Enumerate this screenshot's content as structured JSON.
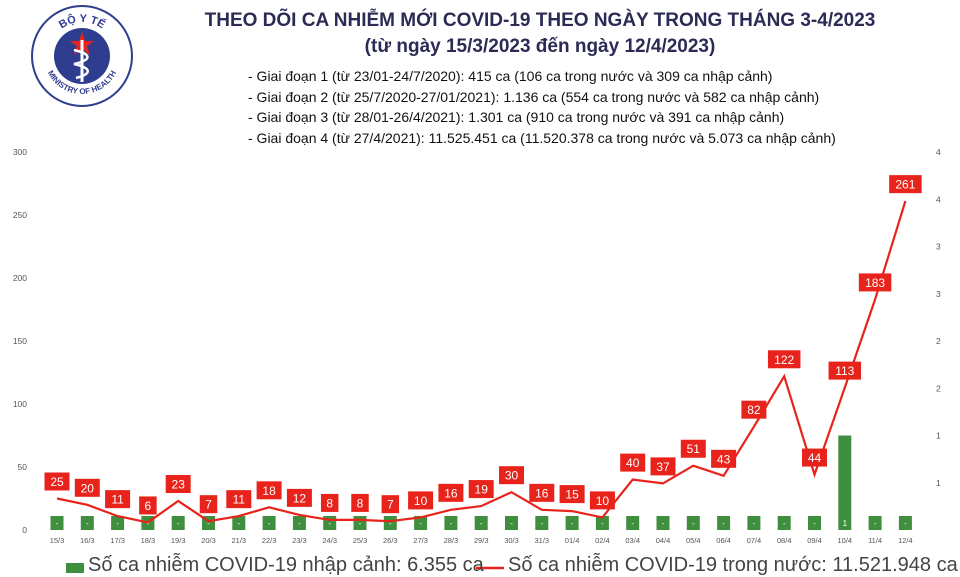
{
  "logo": {
    "text_top": "BỘ Y TẾ",
    "text_bottom": "MINISTRY OF HEALTH"
  },
  "title": "THEO DÕI CA NHIỄM MỚI COVID-19 THEO NGÀY TRONG THÁNG 3-4/2023",
  "subtitle": "(từ ngày 15/3/2023 đến ngày 12/4/2023)",
  "notes": [
    "- Giai đoạn 1 (từ 23/01-24/7/2020): 415 ca (106 ca trong nước và 309 ca nhập cảnh)",
    "- Giai đoạn 2 (từ 25/7/2020-27/01/2021): 1.136 ca (554 ca trong nước và 582 ca nhập cảnh)",
    "- Giai đoạn 3 (từ 28/01-26/4/2021): 1.301 ca (910 ca trong nước và 391 ca nhập cảnh)",
    "- Giai đoạn 4 (từ 27/4/2021): 11.525.451 ca (11.520.378 ca trong nước và 5.073 ca nhập cảnh)"
  ],
  "colors": {
    "bar": "#3f8f3f",
    "line": "#e8231b",
    "label_bg": "#e8231b",
    "title": "#2b2b55",
    "logo": "#2f3d8f"
  },
  "chart_data": {
    "type": "bar",
    "categories": [
      "15/3",
      "16/3",
      "17/3",
      "18/3",
      "19/3",
      "20/3",
      "21/3",
      "22/3",
      "23/3",
      "24/3",
      "25/3",
      "26/3",
      "27/3",
      "28/3",
      "29/3",
      "30/3",
      "31/3",
      "01/4",
      "02/4",
      "03/4",
      "04/4",
      "05/4",
      "06/4",
      "07/4",
      "08/4",
      "09/4",
      "10/4",
      "11/4",
      "12/4"
    ],
    "y_left": {
      "ticks": [
        0,
        50,
        100,
        150,
        200,
        250,
        300
      ],
      "range": [
        0,
        300
      ]
    },
    "y_right": {
      "ticks": [
        "",
        "1",
        "1",
        "2",
        "2",
        "3",
        "3",
        "4",
        "4"
      ],
      "range": [
        0,
        4
      ]
    },
    "series": [
      {
        "name": "Số ca nhiễm COVID-19 nhập cảnh: 6.355 ca",
        "type": "bar",
        "axis": "right",
        "values": [
          0,
          0,
          0,
          0,
          0,
          0,
          0,
          0,
          0,
          0,
          0,
          0,
          0,
          0,
          0,
          0,
          0,
          0,
          0,
          0,
          0,
          0,
          0,
          0,
          0,
          0,
          1,
          0,
          0
        ],
        "labels": [
          "-",
          "-",
          "-",
          "-",
          "-",
          "-",
          "-",
          "-",
          "-",
          "-",
          "-",
          "-",
          "-",
          "-",
          "-",
          "-",
          "-",
          "-",
          "-",
          "-",
          "-",
          "-",
          "-",
          "-",
          "-",
          "-",
          "1",
          "-",
          "-"
        ]
      },
      {
        "name": "Số ca nhiễm COVID-19 trong nước: 11.521.948 ca",
        "type": "line",
        "axis": "left",
        "values": [
          25,
          20,
          11,
          6,
          23,
          7,
          11,
          18,
          12,
          8,
          8,
          7,
          10,
          16,
          19,
          30,
          16,
          15,
          10,
          40,
          37,
          51,
          43,
          82,
          122,
          44,
          113,
          183,
          261
        ]
      }
    ],
    "grid": false,
    "legend": "bottom"
  }
}
